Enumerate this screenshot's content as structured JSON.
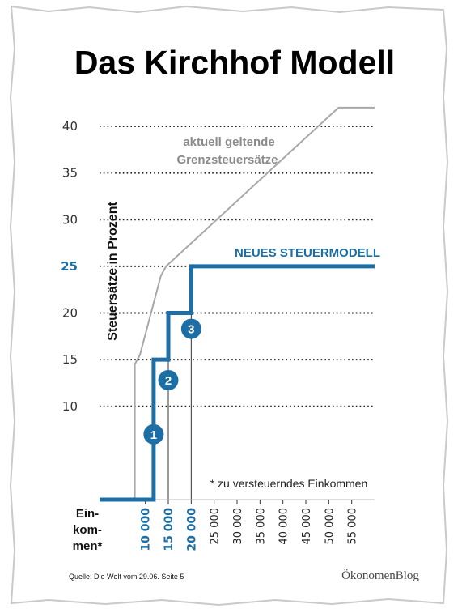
{
  "colors": {
    "new_model": "#1c6ea4",
    "current": "#a8a8a8",
    "background": "#ffffff",
    "paper_edge": "#cfcfcf"
  },
  "header": {
    "title": "Das Kirchhof Modell"
  },
  "annotations": {
    "current_line1": "aktuell geltende",
    "current_line2": "Grenzsteuersätze",
    "new_model": "NEUES STEUERMODELL",
    "footnote": "* zu versteuerndes Einkommen"
  },
  "axis_labels": {
    "ylabel": "Steuersätze in Prozent",
    "xlabel_line1": "Ein-",
    "xlabel_line2": "kom-",
    "xlabel_line3": "men*"
  },
  "footer": {
    "source": "Quelle: Die Welt vom 29.06. Seite 5",
    "brand": "ÖkonomenBlog"
  },
  "chart_data": {
    "type": "line",
    "title": "Das Kirchhof Modell",
    "ylabel": "Steuersätze in Prozent",
    "xlabel": "Einkommen*",
    "xlim": [
      0,
      60000
    ],
    "ylim": [
      0,
      40
    ],
    "y_ticks": [
      10,
      15,
      20,
      25,
      30,
      35,
      40
    ],
    "y_ticks_highlight": [
      25
    ],
    "x_ticks": [
      10000,
      15000,
      20000,
      25000,
      30000,
      35000,
      40000,
      45000,
      50000,
      55000
    ],
    "x_tick_labels": [
      "10 000",
      "15 000",
      "20 000",
      "25 000",
      "30 000",
      "35 000",
      "40 000",
      "45 000",
      "50 000",
      "55 000"
    ],
    "x_ticks_highlight": [
      10000,
      15000,
      20000
    ],
    "grid": "dotted horizontal",
    "series": [
      {
        "name": "aktuell geltende Grenzsteuersätze",
        "color": "#a8a8a8",
        "x": [
          0,
          7700,
          7700,
          8800,
          13400,
          14500,
          52100,
          60000
        ],
        "y": [
          0,
          0,
          14.5,
          15.5,
          24,
          25,
          42,
          42
        ]
      },
      {
        "name": "NEUES STEUERMODELL",
        "color": "#1c6ea4",
        "x": [
          0,
          11800,
          11800,
          15000,
          15000,
          20000,
          20000,
          60000
        ],
        "y": [
          0,
          0,
          15,
          15,
          20,
          20,
          25,
          25
        ]
      }
    ],
    "step_markers": [
      {
        "label": "1",
        "x": 11800,
        "y": 7
      },
      {
        "label": "2",
        "x": 15000,
        "y": 12.8
      },
      {
        "label": "3",
        "x": 20000,
        "y": 18.3
      }
    ]
  }
}
